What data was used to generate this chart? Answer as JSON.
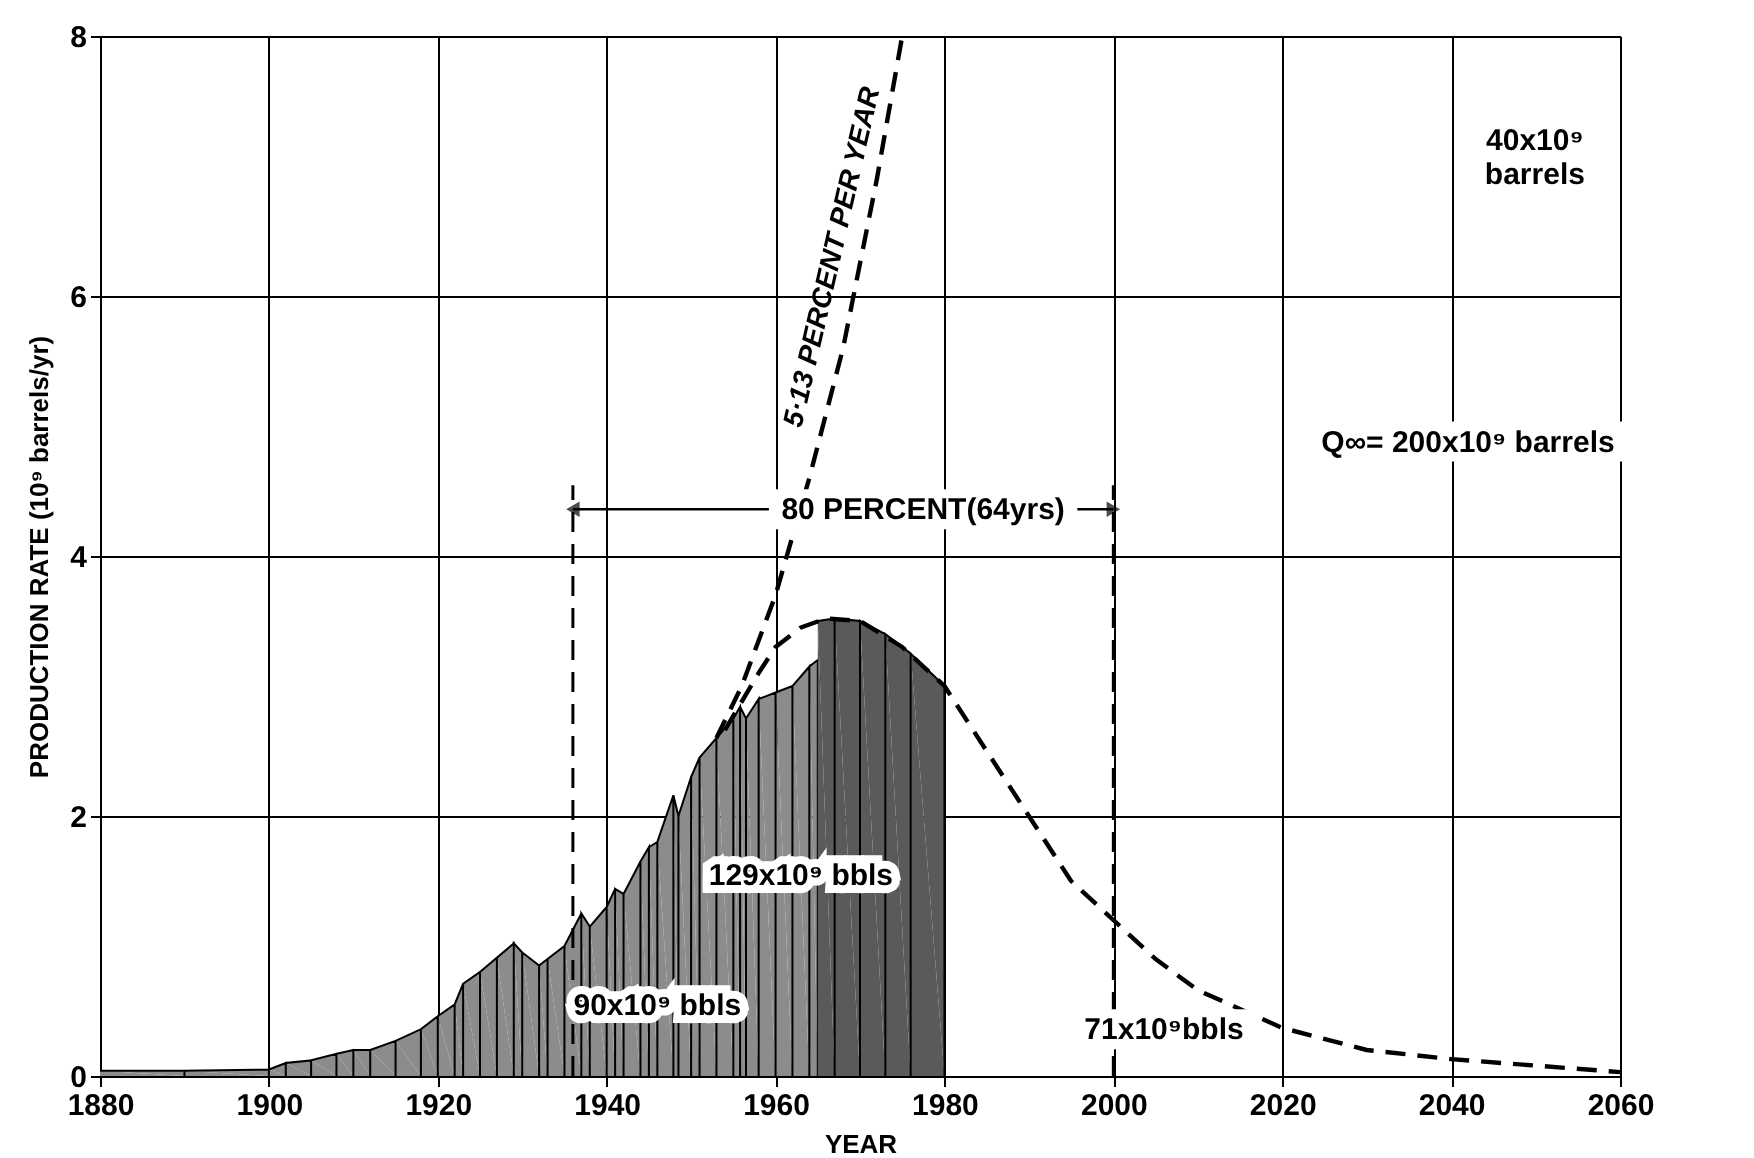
{
  "chart_data": {
    "type": "area",
    "xlabel": "YEAR",
    "ylabel": "PRODUCTION RATE (10⁹ barrels/yr)",
    "xlim": [
      1880,
      2060
    ],
    "xticks": [
      1880,
      1900,
      1920,
      1940,
      1960,
      1980,
      2000,
      2020,
      2040,
      2060
    ],
    "ylim": [
      0,
      8
    ],
    "yticks": [
      0,
      2,
      4,
      6,
      8
    ],
    "grid": true,
    "series": [
      {
        "color": "#8c8c8c",
        "x": [
          1880,
          1890,
          1900,
          1902,
          1905,
          1908,
          1910,
          1912,
          1915,
          1918,
          1920,
          1922,
          1923,
          1925,
          1927,
          1929,
          1930,
          1932,
          1933,
          1935,
          1937,
          1938,
          1940,
          1941,
          1942,
          1944,
          1945,
          1946,
          1947.9,
          1948.5,
          1950,
          1951,
          1953,
          1955,
          1955.8,
          1956.5,
          1958,
          1960,
          1962,
          1964,
          1965
        ],
        "values": [
          0.04,
          0.04,
          0.05,
          0.1,
          0.12,
          0.17,
          0.2,
          0.2,
          0.27,
          0.36,
          0.46,
          0.55,
          0.71,
          0.8,
          0.91,
          1.02,
          0.95,
          0.85,
          0.9,
          1.0,
          1.25,
          1.15,
          1.3,
          1.44,
          1.4,
          1.65,
          1.76,
          1.8,
          2.16,
          2.0,
          2.3,
          2.45,
          2.6,
          2.75,
          2.84,
          2.75,
          2.9,
          2.95,
          3.0,
          3.15,
          3.2
        ]
      },
      {
        "color": "#5a5a5a",
        "x": [
          1965,
          1967,
          1970,
          1973,
          1976,
          1980
        ],
        "values": [
          3.5,
          3.52,
          3.5,
          3.4,
          3.25,
          3.0
        ]
      },
      {
        "type": "line",
        "color": "#000000",
        "line_style": "dashed",
        "x": [
          1954,
          1958,
          1960,
          1963,
          1966,
          1970,
          1975,
          1980,
          1985,
          1990,
          1995,
          2000,
          2005,
          2010,
          2020,
          2030,
          2040,
          2050,
          2060
        ],
        "values": [
          2.66,
          3.1,
          3.3,
          3.45,
          3.52,
          3.5,
          3.3,
          3.0,
          2.5,
          2.0,
          1.5,
          1.2,
          0.9,
          0.66,
          0.37,
          0.2,
          0.13,
          0.08,
          0.03
        ]
      },
      {
        "type": "line",
        "name": "5·13 PERCENT PER YEAR",
        "color": "#000000",
        "line_style": "dashed",
        "x": [
          1953,
          1956,
          1960,
          1964,
          1968,
          1972,
          1975
        ],
        "values": [
          2.6,
          3.0,
          3.7,
          4.6,
          5.6,
          6.9,
          8.0
        ]
      }
    ],
    "ref_lines": [
      {
        "axis": "x",
        "value": 1936,
        "color": "#000000",
        "line_style": "dashed"
      },
      {
        "axis": "x",
        "value": 2000,
        "color": "#000000",
        "line_style": "dashed"
      }
    ],
    "annotations": [
      "80 PERCENT(64yrs)",
      {
        "text": "90x10⁹ bbls",
        "x": 1946,
        "y": 0.55
      },
      {
        "text": "129x10⁹ bbls",
        "x": 1963,
        "y": 1.55
      },
      "71x10⁹bbls",
      "Q∞= 200x10⁹ barrels",
      "40x10⁹\nbarrels"
    ]
  }
}
